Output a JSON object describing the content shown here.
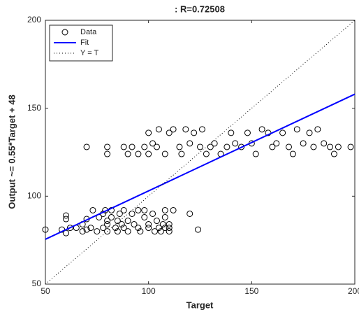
{
  "chart_data": {
    "type": "scatter",
    "title": ": R=0.72508",
    "xlabel": "Target",
    "ylabel": "Output ~= 0.55*Target + 48",
    "xlim": [
      50,
      200
    ],
    "ylim": [
      50,
      200
    ],
    "xticks": [
      50,
      100,
      150,
      200
    ],
    "yticks": [
      50,
      100,
      150,
      200
    ],
    "grid": false,
    "legend": "northwest",
    "series": [
      {
        "name": "Data",
        "style": "circles",
        "color": "#000000",
        "x": [
          50,
          58,
          60,
          60,
          60,
          62,
          65,
          68,
          68,
          70,
          70,
          72,
          73,
          75,
          76,
          78,
          78,
          79,
          80,
          80,
          80,
          82,
          82,
          84,
          85,
          85,
          86,
          87,
          88,
          88,
          90,
          90,
          92,
          93,
          95,
          95,
          96,
          98,
          98,
          100,
          100,
          102,
          103,
          104,
          105,
          106,
          107,
          108,
          108,
          108,
          110,
          110,
          110,
          112,
          120,
          124,
          70,
          80,
          80,
          88,
          90,
          92,
          95,
          98,
          100,
          100,
          102,
          104,
          105,
          108,
          110,
          112,
          115,
          116,
          118,
          120,
          122,
          125,
          126,
          128,
          130,
          132,
          135,
          138,
          140,
          142,
          145,
          148,
          150,
          152,
          155,
          158,
          160,
          162,
          165,
          168,
          170,
          172,
          175,
          178,
          180,
          182,
          185,
          188,
          190,
          192,
          198
        ],
        "values": [
          81,
          81,
          79,
          87,
          89,
          82,
          82,
          80,
          84,
          81,
          87,
          82,
          92,
          80,
          88,
          82,
          90,
          92,
          86,
          84,
          80,
          88,
          92,
          82,
          80,
          86,
          90,
          84,
          92,
          82,
          80,
          86,
          90,
          84,
          92,
          82,
          80,
          88,
          92,
          84,
          82,
          90,
          80,
          86,
          82,
          80,
          84,
          82,
          88,
          92,
          80,
          84,
          82,
          92,
          90,
          81,
          128,
          124,
          128,
          128,
          124,
          128,
          124,
          128,
          136,
          124,
          130,
          128,
          138,
          124,
          136,
          138,
          128,
          124,
          138,
          130,
          136,
          128,
          138,
          124,
          128,
          130,
          124,
          128,
          136,
          130,
          128,
          136,
          130,
          124,
          138,
          136,
          128,
          130,
          136,
          128,
          124,
          138,
          130,
          136,
          128,
          138,
          130,
          128,
          124,
          128,
          128
        ]
      },
      {
        "name": "Fit",
        "style": "solid",
        "color": "#0000ff",
        "x": [
          50,
          200
        ],
        "values": [
          75.5,
          158
        ]
      },
      {
        "name": "Y = T",
        "style": "dotted",
        "color": "#000000",
        "x": [
          50,
          200
        ],
        "values": [
          50,
          200
        ]
      }
    ]
  }
}
